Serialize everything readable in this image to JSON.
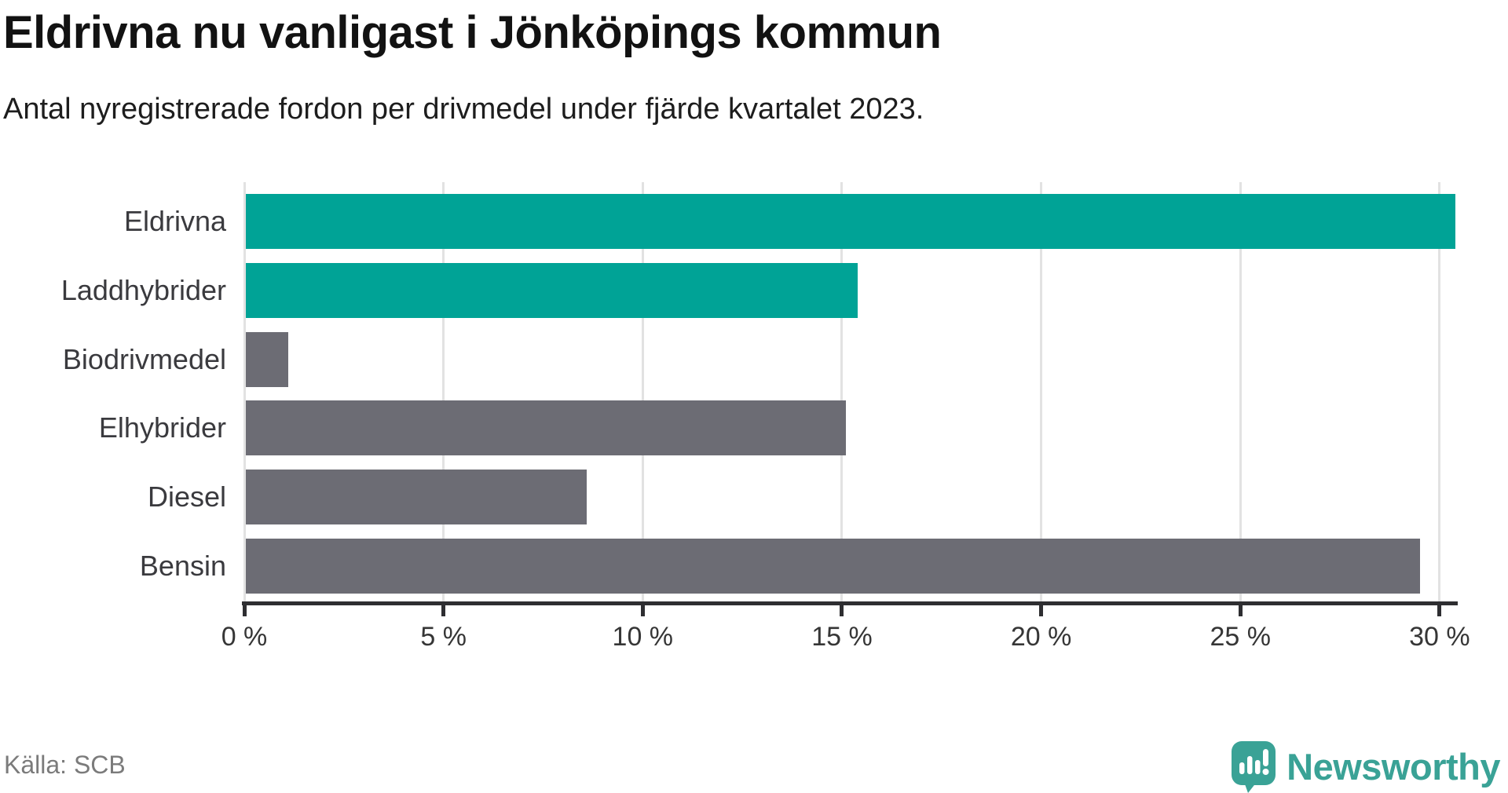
{
  "chart_data": {
    "type": "bar",
    "orientation": "horizontal",
    "title": "Eldrivna nu vanligast i Jönköpings kommun",
    "subtitle": "Antal nyregistrerade fordon per drivmedel under fjärde kvartalet 2023.",
    "categories": [
      "Eldrivna",
      "Laddhybrider",
      "Biodrivmedel",
      "Elhybrider",
      "Diesel",
      "Bensin"
    ],
    "values": [
      30.4,
      15.4,
      1.1,
      15.1,
      8.6,
      29.5
    ],
    "unit": "%",
    "bar_colors": [
      "#00a396",
      "#00a396",
      "#6c6c74",
      "#6c6c74",
      "#6c6c74",
      "#6c6c74"
    ],
    "accent_color": "#00a396",
    "neutral_color": "#6c6c74",
    "xlim": [
      0,
      30.9
    ],
    "x_ticks": [
      {
        "value": 0,
        "label": "0 %"
      },
      {
        "value": 5,
        "label": "5 %"
      },
      {
        "value": 10,
        "label": "10 %"
      },
      {
        "value": 15,
        "label": "15 %"
      },
      {
        "value": 20,
        "label": "20 %"
      },
      {
        "value": 25,
        "label": "25 %"
      },
      {
        "value": 30,
        "label": "30 %"
      }
    ],
    "grid": "vertical-lines",
    "legend": "none"
  },
  "footer": {
    "source": "Källa: SCB",
    "brand": "Newsworthy",
    "brand_color": "#3aa296"
  }
}
